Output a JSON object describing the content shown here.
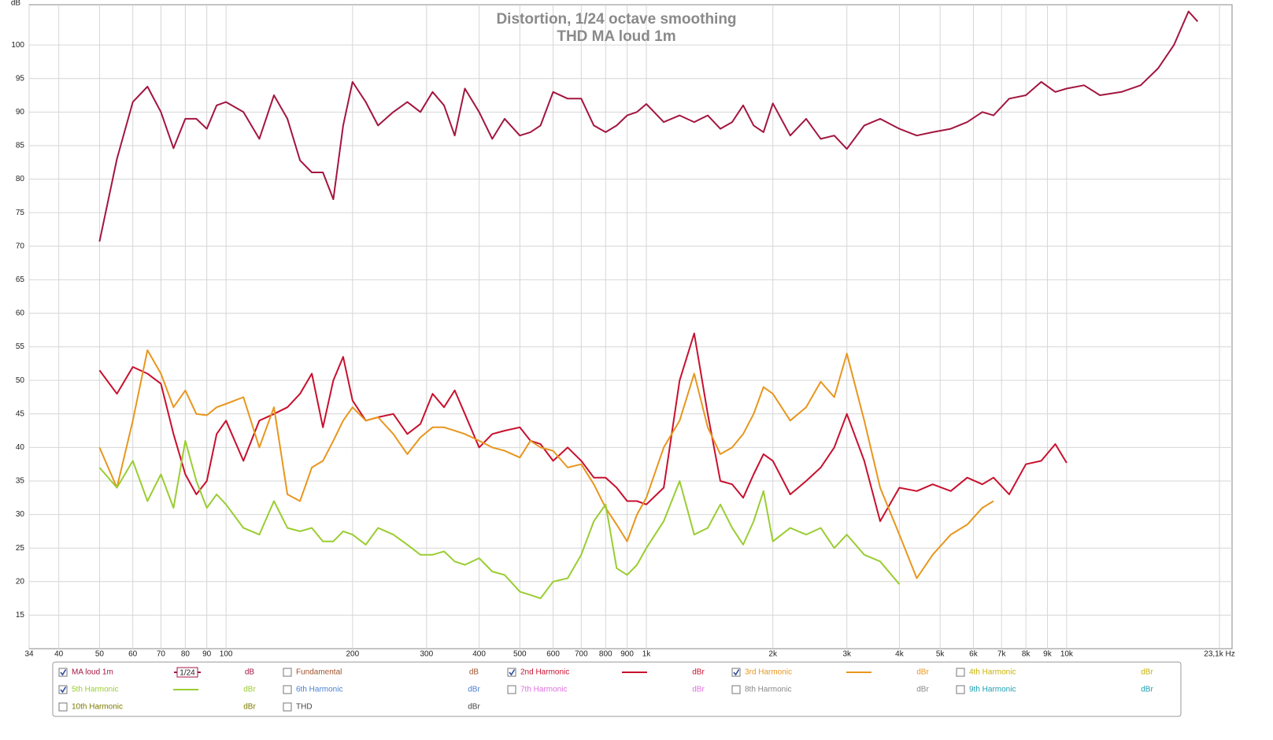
{
  "chart_data": {
    "type": "line",
    "title": "Distortion, 1/24 octave smoothing",
    "subtitle": "THD MA loud 1m",
    "y_label": "dB",
    "xscale": "log",
    "grid": true,
    "xlim": [
      34,
      23100
    ],
    "ylim": [
      10,
      106
    ],
    "xticks": [
      34,
      40,
      50,
      60,
      70,
      80,
      90,
      100,
      200,
      300,
      400,
      500,
      600,
      700,
      800,
      900,
      {
        "value": 1000,
        "label": "1k"
      },
      {
        "value": 2000,
        "label": "2k"
      },
      {
        "value": 3000,
        "label": "3k"
      },
      {
        "value": 4000,
        "label": "4k"
      },
      {
        "value": 5000,
        "label": "5k"
      },
      {
        "value": 6000,
        "label": "6k"
      },
      {
        "value": 7000,
        "label": "7k"
      },
      {
        "value": 8000,
        "label": "8k"
      },
      {
        "value": 9000,
        "label": "9k"
      },
      {
        "value": 10000,
        "label": "10k"
      },
      {
        "value": 23100,
        "label": "23,1k Hz"
      }
    ],
    "yticks": [
      15,
      20,
      25,
      30,
      35,
      40,
      45,
      50,
      55,
      60,
      65,
      70,
      75,
      80,
      85,
      90,
      95,
      100
    ],
    "x": [
      50,
      55,
      60,
      65,
      70,
      75,
      80,
      85,
      90,
      95,
      100,
      110,
      120,
      130,
      140,
      150,
      160,
      170,
      180,
      190,
      200,
      215,
      230,
      250,
      270,
      290,
      310,
      330,
      350,
      370,
      400,
      430,
      460,
      500,
      530,
      560,
      600,
      650,
      700,
      750,
      800,
      850,
      900,
      950,
      1000,
      1100,
      1200,
      1300,
      1400,
      1500,
      1600,
      1700,
      1800,
      1900,
      2000,
      2200,
      2400,
      2600,
      2800,
      3000,
      3300,
      3600,
      4000,
      4400,
      4800,
      5300,
      5800,
      6300,
      6700,
      7300,
      8000,
      8700,
      9400,
      10000,
      11000,
      12000,
      13500,
      15000,
      16500,
      18000,
      19500,
      20500
    ],
    "series": [
      {
        "name": "MA loud 1m",
        "color": "#a3153f",
        "unit": "dB",
        "checked": true,
        "smoothing": "1/24",
        "values": [
          70.7,
          83,
          91.5,
          93.8,
          90,
          84.6,
          89,
          89,
          87.5,
          91,
          91.5,
          90,
          86,
          92.5,
          89,
          82.8,
          81,
          81,
          77,
          88,
          94.5,
          91.5,
          88,
          90,
          91.5,
          90,
          93,
          91,
          86.5,
          93.5,
          90,
          86,
          89,
          86.5,
          87,
          88,
          93,
          92,
          92,
          88,
          87,
          88,
          89.5,
          90,
          91.2,
          88.5,
          89.5,
          88.5,
          89.5,
          87.5,
          88.5,
          91,
          88,
          87,
          91.3,
          86.5,
          89,
          86,
          86.5,
          84.5,
          88,
          89,
          87.5,
          86.5,
          87,
          87.5,
          88.5,
          90,
          89.5,
          92,
          92.5,
          94.5,
          93,
          93.5,
          94,
          92.5,
          93,
          94,
          96.5,
          100,
          105,
          103.5
        ]
      },
      {
        "name": "Fundamental",
        "color": "#a0522d",
        "unit": "dB",
        "checked": false
      },
      {
        "name": "2nd Harmonic",
        "color": "#c8102e",
        "unit": "dBr",
        "checked": true,
        "values": [
          51.5,
          48,
          52,
          51,
          49.5,
          42,
          36,
          33,
          35,
          42,
          44,
          38,
          44,
          45,
          46,
          48,
          51,
          43,
          50,
          53.5,
          47,
          44,
          44.5,
          45,
          42,
          43.5,
          48,
          46,
          48.5,
          45,
          40,
          42,
          42.5,
          43,
          41,
          40.5,
          38,
          40,
          38,
          35.5,
          35.5,
          34,
          32,
          32,
          31.5,
          34,
          50,
          57,
          45,
          35,
          34.5,
          32.5,
          36,
          39,
          38,
          33,
          35,
          37,
          40,
          45,
          38,
          29,
          34,
          33.5,
          34.5,
          33.5,
          35.5,
          34.5,
          35.5,
          33,
          37.5,
          38,
          40.5,
          37.7,
          null,
          null,
          null,
          null,
          null,
          null,
          null,
          null
        ]
      },
      {
        "name": "3rd Harmonic",
        "color": "#e8961e",
        "unit": "dBr",
        "checked": true,
        "values": [
          40,
          34,
          44,
          54.5,
          51,
          46,
          48.5,
          45,
          44.8,
          46,
          46.5,
          47.5,
          40,
          46,
          33,
          32,
          37,
          38,
          41,
          44,
          46,
          44,
          44.5,
          42,
          39,
          41.5,
          43,
          43,
          42.5,
          42,
          41,
          40,
          39.5,
          38.5,
          41,
          40,
          39.5,
          37,
          37.5,
          34.5,
          31,
          28.5,
          26,
          30,
          32.5,
          40,
          44,
          51,
          43,
          39,
          40,
          42,
          45,
          49,
          48,
          44,
          46,
          49.8,
          47.5,
          54,
          44,
          34,
          27,
          20.5,
          24,
          27,
          28.5,
          31,
          32,
          null,
          null,
          null,
          null,
          null,
          null,
          null,
          null,
          null,
          null,
          null,
          null,
          null
        ]
      },
      {
        "name": "4th Harmonic",
        "color": "#c8b400",
        "unit": "dBr",
        "checked": false
      },
      {
        "name": "5th Harmonic",
        "color": "#9acd32",
        "unit": "dBr",
        "checked": true,
        "values": [
          37,
          34,
          38,
          32,
          36,
          31,
          41,
          35,
          31,
          33,
          31.5,
          28,
          27,
          32,
          28,
          27.5,
          28,
          26,
          26,
          27.5,
          27,
          25.5,
          28,
          27,
          25.5,
          24,
          24,
          24.5,
          23,
          22.5,
          23.5,
          21.5,
          21,
          18.5,
          18,
          17.5,
          20,
          20.5,
          24,
          29,
          31.5,
          22,
          21,
          22.5,
          25,
          29,
          35,
          27,
          28,
          31.5,
          28,
          25.5,
          29,
          33.5,
          26,
          28,
          27,
          28,
          25,
          27,
          24,
          23,
          19.6,
          null,
          null,
          null,
          null,
          null,
          null,
          null,
          null,
          null,
          null,
          null,
          null,
          null,
          null,
          null,
          null,
          null,
          null,
          null
        ]
      },
      {
        "name": "6th Harmonic",
        "color": "#4a7fd0",
        "unit": "dBr",
        "checked": false
      },
      {
        "name": "7th Harmonic",
        "color": "#e070e0",
        "unit": "dBr",
        "checked": false
      },
      {
        "name": "8th Harmonic",
        "color": "#888888",
        "unit": "dBr",
        "checked": false
      },
      {
        "name": "9th Harmonic",
        "color": "#1aa0b0",
        "unit": "dBr",
        "checked": false
      },
      {
        "name": "10th Harmonic",
        "color": "#7a7a00",
        "unit": "dBr",
        "checked": false
      },
      {
        "name": "THD",
        "color": "#444444",
        "unit": "dBr",
        "checked": false
      }
    ]
  }
}
